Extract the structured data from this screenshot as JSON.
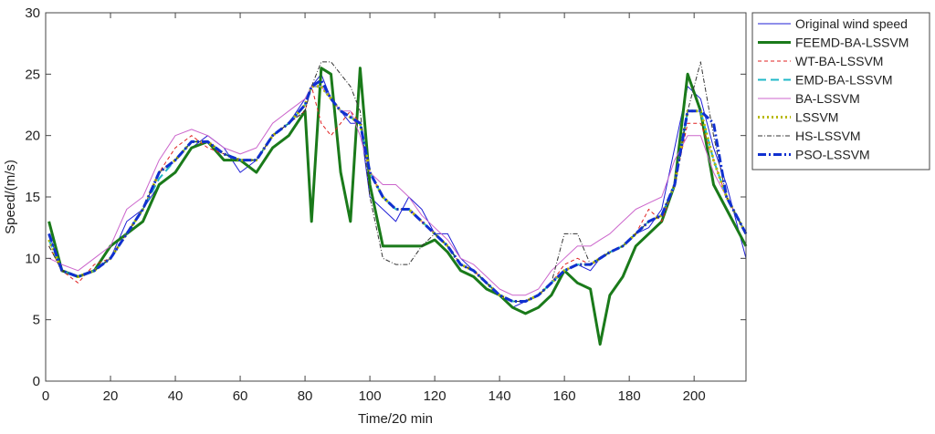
{
  "chart_data": {
    "type": "line",
    "title": "",
    "xlabel": "Time/20 min",
    "ylabel": "Speed/(m/s)",
    "xlim": [
      0,
      216
    ],
    "ylim": [
      0,
      30
    ],
    "xticks": [
      0,
      20,
      40,
      60,
      80,
      100,
      120,
      140,
      160,
      180,
      200
    ],
    "yticks": [
      0,
      5,
      10,
      15,
      20,
      25,
      30
    ],
    "legend_position": "top-right-outside",
    "grid": false,
    "x": [
      1,
      5,
      10,
      15,
      20,
      25,
      30,
      35,
      40,
      45,
      50,
      55,
      60,
      65,
      70,
      75,
      80,
      82,
      85,
      88,
      91,
      94,
      97,
      100,
      104,
      108,
      112,
      116,
      120,
      124,
      128,
      132,
      136,
      140,
      144,
      148,
      152,
      156,
      160,
      164,
      168,
      171,
      174,
      178,
      182,
      186,
      190,
      194,
      198,
      202,
      206,
      210,
      214,
      216
    ],
    "series": [
      {
        "name": "Original wind speed",
        "color": "#1f1fd6",
        "style": "solid",
        "width": 1,
        "values": [
          12,
          9,
          8.5,
          9,
          10,
          13,
          14,
          16,
          17,
          19,
          20,
          19,
          17,
          18,
          20,
          21,
          23,
          24,
          25,
          23,
          22,
          21,
          21,
          15,
          14,
          13,
          15,
          14,
          12,
          12,
          10,
          9,
          8,
          7,
          6,
          6.5,
          7,
          8,
          9,
          9.5,
          9,
          10,
          10.5,
          11,
          12,
          12.5,
          14,
          19,
          24,
          23,
          19,
          16,
          12,
          10
        ]
      },
      {
        "name": "FEEMD-BA-LSSVM",
        "color": "#1a7a1a",
        "style": "solid",
        "width": 3,
        "values": [
          13,
          9,
          8.5,
          9,
          11,
          12,
          13,
          16,
          17,
          19,
          19.5,
          18,
          18,
          17,
          19,
          20,
          22,
          13,
          25.5,
          25,
          17,
          13,
          25.5,
          16,
          11,
          11,
          11,
          11,
          11.5,
          10.5,
          9,
          8.5,
          7.5,
          7,
          6,
          5.5,
          6,
          7,
          9,
          8,
          7.5,
          3,
          7,
          8.5,
          11,
          12,
          13,
          16,
          25,
          22,
          16,
          14,
          12,
          11
        ]
      },
      {
        "name": "WT-BA-LSSVM",
        "color": "#e02020",
        "style": "dashed-fine",
        "width": 1,
        "values": [
          11,
          9,
          8,
          9.5,
          10,
          12,
          14,
          17,
          19,
          20,
          19,
          18.5,
          18,
          18,
          20,
          21,
          22,
          24,
          21,
          20,
          21,
          22,
          21,
          17,
          15,
          14,
          14,
          13,
          12,
          11,
          9.5,
          9,
          8,
          7,
          6.5,
          6.5,
          7,
          8,
          9.5,
          10,
          9.5,
          10,
          10.5,
          11,
          12,
          14,
          13,
          16,
          21,
          21,
          18,
          15,
          13,
          12
        ]
      },
      {
        "name": "EMD-BA-LSSVM",
        "color": "#20b8c8",
        "style": "dashed-long",
        "width": 2,
        "values": [
          11.5,
          9,
          8.5,
          9,
          10,
          12,
          14,
          16.5,
          18,
          19.5,
          19.5,
          18.5,
          18,
          18,
          20,
          21,
          22.5,
          24,
          24,
          23,
          22,
          21.5,
          21,
          17,
          15,
          14,
          14,
          13,
          12,
          11,
          9.5,
          9,
          8,
          7,
          6.5,
          6.5,
          7,
          8,
          9,
          9.5,
          9.5,
          10,
          10.5,
          11,
          12,
          13,
          13.5,
          16,
          22,
          22,
          18,
          15,
          13,
          12
        ]
      },
      {
        "name": "BA-LSSVM",
        "color": "#cc66cc",
        "style": "solid",
        "width": 1,
        "values": [
          10,
          9.5,
          9,
          10,
          11,
          14,
          15,
          18,
          20,
          20.5,
          20,
          19,
          18.5,
          19,
          21,
          22,
          23,
          24,
          24,
          23,
          22,
          22,
          20,
          17,
          16,
          16,
          15,
          13.5,
          12.5,
          11.5,
          10,
          9.5,
          8.5,
          7.5,
          7,
          7,
          7.5,
          9,
          10,
          11,
          11,
          11.5,
          12,
          13,
          14,
          14.5,
          15,
          18,
          20,
          20,
          17,
          15,
          13,
          12
        ]
      },
      {
        "name": "LSSVM",
        "color": "#b8b800",
        "style": "dotted",
        "width": 3,
        "values": [
          11.5,
          9,
          8.5,
          9,
          10,
          12,
          14,
          17,
          18,
          19.5,
          19.5,
          18.5,
          18,
          18,
          20,
          21,
          22.5,
          24,
          24,
          23,
          22,
          21.5,
          21,
          17,
          15,
          14,
          14,
          13,
          12,
          11,
          9.5,
          9,
          8,
          7,
          6.5,
          6.5,
          7,
          8,
          9,
          9.5,
          9.5,
          10,
          10.5,
          11,
          12,
          13,
          13.5,
          16,
          22,
          22,
          18,
          15,
          13,
          12
        ]
      },
      {
        "name": "HS-LSSVM",
        "color": "#333333",
        "style": "dash-dot-fine",
        "width": 1,
        "values": [
          11,
          9,
          8.5,
          9,
          10,
          12,
          14,
          17,
          18,
          19.5,
          19.5,
          18.5,
          18,
          18,
          20,
          21,
          22,
          24,
          26,
          26,
          25,
          24,
          22,
          15,
          10,
          9.5,
          9.5,
          11,
          12,
          11,
          9.5,
          9,
          8,
          7,
          6.5,
          6.5,
          7,
          8,
          12,
          12,
          9.5,
          10,
          10.5,
          11,
          12,
          13,
          13.5,
          16,
          22,
          26,
          20,
          15,
          13,
          12
        ]
      },
      {
        "name": "PSO-LSSVM",
        "color": "#1030d0",
        "style": "dash-dot",
        "width": 3,
        "values": [
          12,
          9,
          8.5,
          9,
          10,
          12,
          14,
          17,
          18,
          19.5,
          19.5,
          18.5,
          18,
          18,
          20,
          21,
          22.5,
          24,
          24.5,
          23,
          22,
          21.5,
          21,
          17,
          15,
          14,
          14,
          13,
          12,
          11,
          9.5,
          9,
          8,
          7,
          6.5,
          6.5,
          7,
          8,
          9,
          9.5,
          9.5,
          10,
          10.5,
          11,
          12,
          13,
          13.5,
          16,
          22,
          22,
          21,
          15,
          13,
          12
        ]
      }
    ]
  }
}
